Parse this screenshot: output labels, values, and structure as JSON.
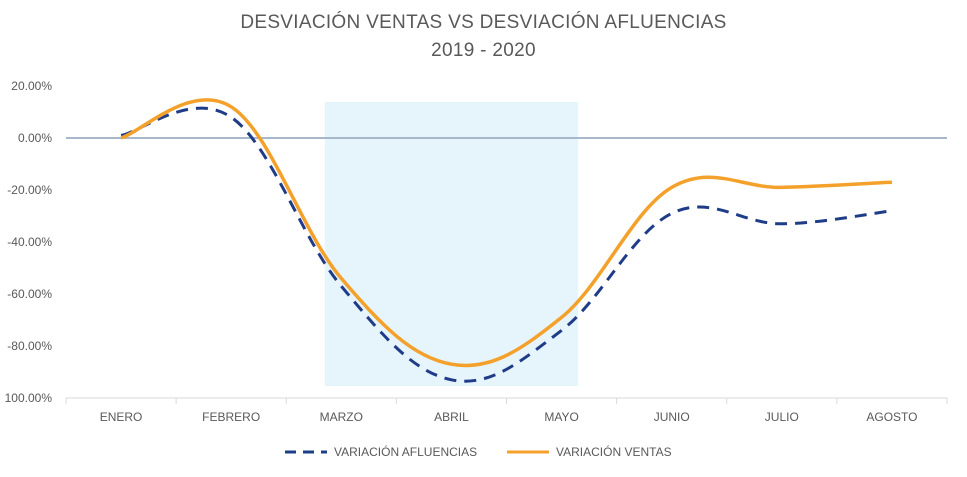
{
  "chart_data": {
    "type": "line",
    "title": "DESVIACIÓN VENTAS VS DESVIACIÓN AFLUENCIAS",
    "subtitle": "2019 - 2020",
    "categories": [
      "ENERO",
      "FEBRERO",
      "MARZO",
      "ABRIL",
      "MAYO",
      "JUNIO",
      "JULIO",
      "AGOSTO"
    ],
    "y_ticks": [
      "20.00%",
      "0.00%",
      "-20.00%",
      "-40.00%",
      "-60.00%",
      "-80.00%",
      "100.00%"
    ],
    "ylim": [
      -100,
      20
    ],
    "highlight_range": [
      "MARZO",
      "MAYO"
    ],
    "series": [
      {
        "name": "VARIACIÓN AFLUENCIAS",
        "values": [
          1,
          8,
          -57,
          -93,
          -74,
          -29,
          -33,
          -28
        ],
        "color": "#1f3c88",
        "style": "dashed"
      },
      {
        "name": "VARIACIÓN VENTAS",
        "values": [
          0,
          12,
          -54,
          -87,
          -69,
          -19,
          -19,
          -17
        ],
        "color": "#f4a12c",
        "style": "solid"
      }
    ],
    "legend_position": "bottom",
    "grid": false,
    "zero_line_color": "#a6b8c9",
    "highlight_color": "#e6f4fb"
  }
}
